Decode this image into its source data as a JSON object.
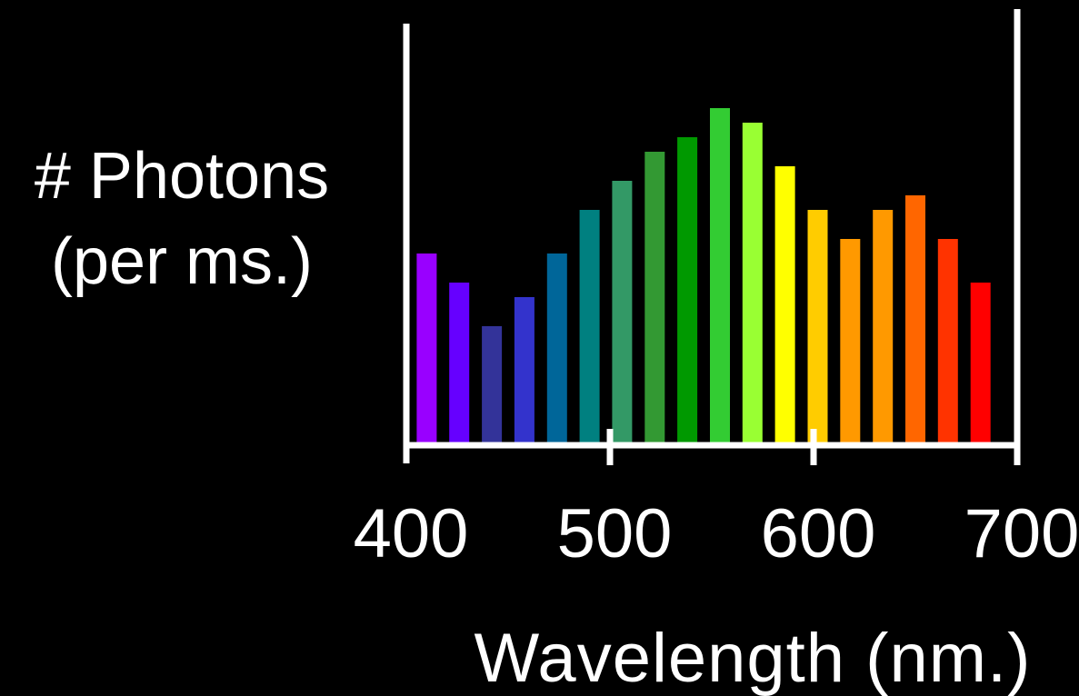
{
  "chart_data": {
    "type": "bar",
    "ylabel_lines": [
      "# Photons",
      "(per ms.)"
    ],
    "xlabel": "Wavelength (nm.)",
    "xlim": [
      400,
      700
    ],
    "x_ticks": [
      400,
      500,
      600,
      700
    ],
    "x_tick_labels": [
      "400",
      "500",
      "600",
      "700"
    ],
    "ylim": [
      0,
      24
    ],
    "grid": false,
    "background_color": "#000000",
    "axis_color": "#ffffff",
    "x": [
      410,
      426,
      442,
      458,
      474,
      490,
      506,
      522,
      538,
      554,
      570,
      586,
      602,
      618,
      634,
      650,
      666,
      682
    ],
    "values": [
      13,
      11,
      8,
      10,
      13,
      16,
      18,
      20,
      21,
      23,
      22,
      19,
      16,
      14,
      16,
      17,
      14,
      11
    ],
    "bar_colors": [
      "#9900ff",
      "#6600ff",
      "#333399",
      "#3333cc",
      "#006699",
      "#008080",
      "#339966",
      "#339933",
      "#009900",
      "#33cc33",
      "#99ff33",
      "#ffff00",
      "#ffcc00",
      "#ff9900",
      "#ff9900",
      "#ff6600",
      "#ff3300",
      "#ff0000"
    ]
  }
}
